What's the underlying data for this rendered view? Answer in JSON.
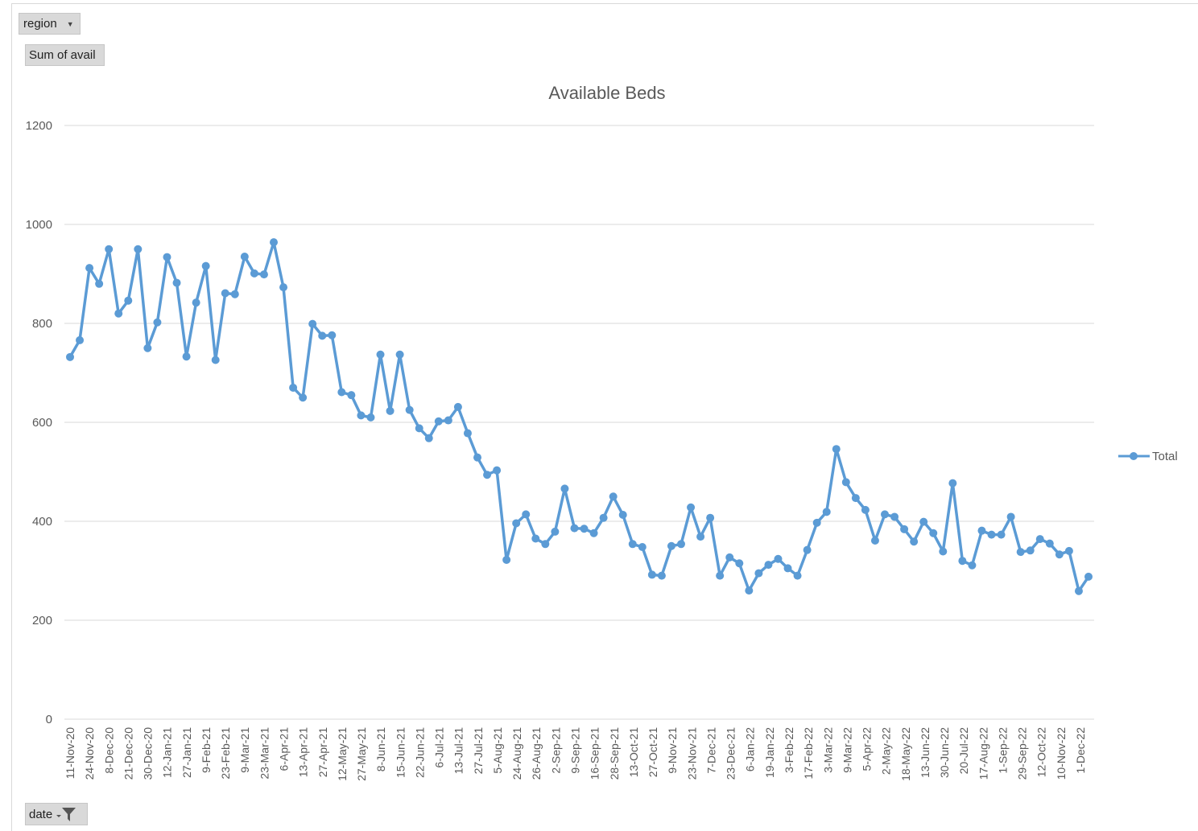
{
  "field_buttons": {
    "region_label": "region",
    "sum_label": "Sum of avail",
    "date_label": "date"
  },
  "chart_data": {
    "type": "line",
    "title": "Available Beds",
    "xlabel": "",
    "ylabel": "",
    "ylim": [
      0,
      1200
    ],
    "yticks": [
      0,
      200,
      400,
      600,
      800,
      1000,
      1200
    ],
    "grid": true,
    "legend_position": "right",
    "colors": {
      "series": "#5b9bd5",
      "grid": "#d9d9d9",
      "text": "#595959"
    },
    "x_tick_labels": [
      "11-Nov-20",
      "24-Nov-20",
      "8-Dec-20",
      "21-Dec-20",
      "30-Dec-20",
      "12-Jan-21",
      "27-Jan-21",
      "9-Feb-21",
      "23-Feb-21",
      "9-Mar-21",
      "23-Mar-21",
      "6-Apr-21",
      "13-Apr-21",
      "27-Apr-21",
      "12-May-21",
      "27-May-21",
      "8-Jun-21",
      "15-Jun-21",
      "22-Jun-21",
      "6-Jul-21",
      "13-Jul-21",
      "27-Jul-21",
      "5-Aug-21",
      "24-Aug-21",
      "26-Aug-21",
      "2-Sep-21",
      "9-Sep-21",
      "16-Sep-21",
      "28-Sep-21",
      "13-Oct-21",
      "27-Oct-21",
      "9-Nov-21",
      "23-Nov-21",
      "7-Dec-21",
      "23-Dec-21",
      "6-Jan-22",
      "19-Jan-22",
      "3-Feb-22",
      "17-Feb-22",
      "3-Mar-22",
      "9-Mar-22",
      "5-Apr-22",
      "2-May-22",
      "18-May-22",
      "13-Jun-22",
      "30-Jun-22",
      "20-Jul-22",
      "17-Aug-22",
      "1-Sep-22",
      "29-Sep-22",
      "12-Oct-22",
      "10-Nov-22",
      "1-Dec-22"
    ],
    "series": [
      {
        "name": "Total",
        "values": [
          732,
          766,
          912,
          880,
          950,
          820,
          846,
          950,
          750,
          802,
          934,
          882,
          733,
          842,
          916,
          726,
          861,
          859,
          935,
          901,
          899,
          964,
          873,
          670,
          650,
          799,
          775,
          776,
          661,
          655,
          614,
          610,
          737,
          623,
          737,
          625,
          588,
          568,
          602,
          604,
          631,
          578,
          529,
          494,
          503,
          322,
          396,
          414,
          365,
          354,
          379,
          466,
          386,
          385,
          376,
          407,
          450,
          413,
          354,
          348,
          292,
          290,
          350,
          354,
          428,
          369,
          407,
          290,
          327,
          315,
          260,
          295,
          312,
          324,
          305,
          290,
          342,
          397,
          419,
          546,
          479,
          447,
          423,
          361,
          414,
          409,
          384,
          359,
          399,
          376,
          339,
          477,
          320,
          311,
          381,
          373,
          373,
          409,
          338,
          341,
          364,
          355,
          333,
          340,
          259,
          288
        ]
      }
    ]
  }
}
